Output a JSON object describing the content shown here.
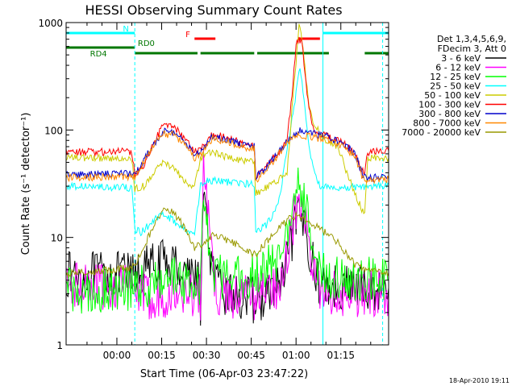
{
  "chart_data": {
    "type": "line",
    "title": "HESSI Observing Summary Count Rates",
    "xlabel": "Start Time (06-Apr-03 23:47:22)",
    "ylabel": "Count Rate (s⁻¹ detector⁻¹)",
    "yscale": "log",
    "ylim": [
      1,
      1000
    ],
    "xlim_minutes": [
      -17,
      91
    ],
    "x_ticks": [
      {
        "minutes": 0,
        "label": "00:00"
      },
      {
        "minutes": 15,
        "label": "00:15"
      },
      {
        "minutes": 30,
        "label": "00:30"
      },
      {
        "minutes": 45,
        "label": "00:45"
      },
      {
        "minutes": 60,
        "label": "01:00"
      },
      {
        "minutes": 75,
        "label": "01:15"
      }
    ],
    "y_ticks": [
      {
        "value": 1,
        "label": "1"
      },
      {
        "value": 10,
        "label": "10"
      },
      {
        "value": 100,
        "label": "100"
      },
      {
        "value": 1000,
        "label": "1000"
      }
    ],
    "legend": {
      "placement": "right",
      "header": [
        "Det 1,3,4,5,6,9,",
        "FDecim 3, Att 0"
      ]
    },
    "footer_date": "18-Apr-2010 19:11",
    "grid": false,
    "state_bars": [
      {
        "label": "N",
        "color": "#00ffff",
        "segments": [
          [
            -17,
            6
          ],
          [
            69,
            91
          ]
        ],
        "label_at": 2
      },
      {
        "label": "F",
        "color": "#ff0000",
        "segments": [
          [
            26,
            33
          ],
          [
            61,
            68
          ]
        ],
        "label_at": 23
      },
      {
        "label": "RD0",
        "color": "#007700",
        "segments": [
          [
            -17,
            6
          ]
        ],
        "label_at": 7
      },
      {
        "label": "RD4",
        "color": "#007700",
        "segments": [
          [
            6,
            27
          ],
          [
            28,
            46
          ],
          [
            47,
            71
          ],
          [
            83,
            91
          ]
        ],
        "label_at": -9
      }
    ],
    "vlines": [
      {
        "minutes": 6,
        "color": "#00ffff",
        "style": "dashed"
      },
      {
        "minutes": 69,
        "color": "#00ffff",
        "style": "solid"
      },
      {
        "minutes": 89,
        "color": "#00ffff",
        "style": "dashed"
      }
    ],
    "series": [
      {
        "name": "3 - 6 keV",
        "color": "#000000",
        "points": [
          [
            -17,
            4.5
          ],
          [
            5,
            4.5
          ],
          [
            6,
            4.5
          ],
          [
            6.5,
            4.5
          ],
          [
            10,
            5.2
          ],
          [
            14,
            5.8
          ],
          [
            18,
            5.8
          ],
          [
            22,
            5.2
          ],
          [
            26,
            4.8
          ],
          [
            27.5,
            3.5
          ],
          [
            28,
            2.5
          ],
          [
            29,
            21
          ],
          [
            30,
            14
          ],
          [
            31,
            8
          ],
          [
            32,
            5
          ],
          [
            33,
            4
          ],
          [
            34,
            3.2
          ],
          [
            40,
            2.8
          ],
          [
            46,
            2.6
          ],
          [
            50,
            2.8
          ],
          [
            56,
            4
          ],
          [
            59,
            11
          ],
          [
            61,
            15
          ],
          [
            63,
            13
          ],
          [
            65,
            7
          ],
          [
            67,
            4
          ],
          [
            69,
            3.5
          ],
          [
            75,
            3.5
          ],
          [
            88,
            3.3
          ],
          [
            91,
            3.4
          ]
        ]
      },
      {
        "name": "6 - 12 keV",
        "color": "#ff00ff",
        "points": [
          [
            -17,
            3.5
          ],
          [
            5,
            3.5
          ],
          [
            6,
            3.2
          ],
          [
            8,
            2.8
          ],
          [
            14,
            2.9
          ],
          [
            20,
            3.0
          ],
          [
            26,
            3.0
          ],
          [
            28,
            2.8
          ],
          [
            29,
            42
          ],
          [
            30,
            22
          ],
          [
            31,
            11
          ],
          [
            32,
            6
          ],
          [
            33,
            3.5
          ],
          [
            34,
            3.0
          ],
          [
            46,
            2.8
          ],
          [
            54,
            3.6
          ],
          [
            57,
            7
          ],
          [
            60,
            18
          ],
          [
            61,
            21
          ],
          [
            62,
            18
          ],
          [
            64,
            10
          ],
          [
            66,
            4
          ],
          [
            68,
            3.2
          ],
          [
            75,
            3.0
          ],
          [
            91,
            3.0
          ]
        ]
      },
      {
        "name": "12 - 25 keV",
        "color": "#00ff00",
        "points": [
          [
            -17,
            3.2
          ],
          [
            5,
            3.3
          ],
          [
            6,
            3.4
          ],
          [
            10,
            3.6
          ],
          [
            18,
            4.2
          ],
          [
            26,
            3.8
          ],
          [
            28,
            3.5
          ],
          [
            29,
            25
          ],
          [
            30,
            15
          ],
          [
            31,
            8
          ],
          [
            32,
            5
          ],
          [
            34,
            4.3
          ],
          [
            40,
            4.4
          ],
          [
            46,
            4.4
          ],
          [
            54,
            6
          ],
          [
            58,
            13
          ],
          [
            61,
            32
          ],
          [
            62,
            28
          ],
          [
            64,
            14
          ],
          [
            66,
            8
          ],
          [
            68,
            4.5
          ],
          [
            75,
            4.1
          ],
          [
            91,
            4.0
          ]
        ]
      },
      {
        "name": "25 - 50 keV",
        "color": "#00ffff",
        "points": [
          [
            -17,
            30
          ],
          [
            5,
            29
          ],
          [
            6,
            12
          ],
          [
            8,
            11
          ],
          [
            12,
            14
          ],
          [
            15,
            16.5
          ],
          [
            18,
            15
          ],
          [
            22,
            12
          ],
          [
            26,
            10.5
          ],
          [
            28,
            30
          ],
          [
            30,
            34
          ],
          [
            36,
            33
          ],
          [
            40,
            32
          ],
          [
            46,
            31
          ],
          [
            46.5,
            11
          ],
          [
            50,
            13
          ],
          [
            54,
            20
          ],
          [
            57,
            65
          ],
          [
            60,
            220
          ],
          [
            61,
            370
          ],
          [
            62,
            300
          ],
          [
            64,
            80
          ],
          [
            66,
            40
          ],
          [
            68,
            30
          ],
          [
            70,
            30
          ],
          [
            75,
            29
          ],
          [
            88,
            30
          ],
          [
            91,
            31
          ]
        ]
      },
      {
        "name": "50 - 100 keV",
        "color": "#cccc00",
        "points": [
          [
            -17,
            55
          ],
          [
            5,
            55
          ],
          [
            6,
            28
          ],
          [
            9,
            30
          ],
          [
            13,
            43
          ],
          [
            16,
            50
          ],
          [
            19,
            43
          ],
          [
            23,
            33
          ],
          [
            26,
            29
          ],
          [
            28,
            55
          ],
          [
            31,
            63
          ],
          [
            36,
            57
          ],
          [
            41,
            52
          ],
          [
            46,
            50
          ],
          [
            46.5,
            26
          ],
          [
            50,
            29
          ],
          [
            54,
            34
          ],
          [
            57,
            40
          ],
          [
            59,
            200
          ],
          [
            61,
            950
          ],
          [
            62,
            700
          ],
          [
            64,
            200
          ],
          [
            66,
            110
          ],
          [
            70,
            80
          ],
          [
            74,
            70
          ],
          [
            77,
            40
          ],
          [
            80,
            25
          ],
          [
            82,
            18
          ],
          [
            83,
            16
          ],
          [
            84,
            55
          ],
          [
            88,
            55
          ],
          [
            91,
            55
          ]
        ]
      },
      {
        "name": "100 - 300 keV",
        "color": "#ff0000",
        "points": [
          [
            -17,
            62
          ],
          [
            5,
            63
          ],
          [
            6,
            38
          ],
          [
            9,
            48
          ],
          [
            13,
            82
          ],
          [
            16,
            117
          ],
          [
            19,
            108
          ],
          [
            23,
            80
          ],
          [
            26,
            63
          ],
          [
            28,
            66
          ],
          [
            32,
            90
          ],
          [
            37,
            85
          ],
          [
            42,
            75
          ],
          [
            46,
            70
          ],
          [
            46.5,
            37
          ],
          [
            50,
            48
          ],
          [
            54,
            60
          ],
          [
            57,
            82
          ],
          [
            59,
            270
          ],
          [
            60,
            650
          ],
          [
            61,
            690
          ],
          [
            62,
            650
          ],
          [
            64,
            180
          ],
          [
            66,
            95
          ],
          [
            70,
            88
          ],
          [
            74,
            80
          ],
          [
            77,
            72
          ],
          [
            80,
            58
          ],
          [
            82,
            42
          ],
          [
            83,
            40
          ],
          [
            84,
            62
          ],
          [
            88,
            63
          ],
          [
            91,
            64
          ]
        ]
      },
      {
        "name": "300 - 800 keV",
        "color": "#0000cc",
        "points": [
          [
            -17,
            38
          ],
          [
            5,
            39
          ],
          [
            6,
            38
          ],
          [
            9,
            52
          ],
          [
            13,
            78
          ],
          [
            16,
            97
          ],
          [
            19,
            95
          ],
          [
            23,
            75
          ],
          [
            26,
            58
          ],
          [
            28,
            63
          ],
          [
            32,
            88
          ],
          [
            37,
            82
          ],
          [
            42,
            73
          ],
          [
            46,
            70
          ],
          [
            46.5,
            36
          ],
          [
            50,
            45
          ],
          [
            54,
            60
          ],
          [
            57,
            80
          ],
          [
            59,
            92
          ],
          [
            61,
            98
          ],
          [
            62,
            97
          ],
          [
            64,
            95
          ],
          [
            66,
            92
          ],
          [
            70,
            88
          ],
          [
            74,
            78
          ],
          [
            77,
            70
          ],
          [
            80,
            58
          ],
          [
            82,
            40
          ],
          [
            83,
            36
          ],
          [
            91,
            36
          ]
        ]
      },
      {
        "name": "800 - 7000 keV",
        "color": "#ff8800",
        "points": [
          [
            -17,
            36
          ],
          [
            5,
            37
          ],
          [
            6,
            36
          ],
          [
            9,
            50
          ],
          [
            13,
            75
          ],
          [
            16,
            92
          ],
          [
            19,
            90
          ],
          [
            23,
            72
          ],
          [
            26,
            55
          ],
          [
            28,
            60
          ],
          [
            32,
            84
          ],
          [
            37,
            78
          ],
          [
            42,
            70
          ],
          [
            46,
            67
          ],
          [
            46.5,
            34
          ],
          [
            50,
            43
          ],
          [
            54,
            58
          ],
          [
            57,
            76
          ],
          [
            59,
            85
          ],
          [
            61,
            90
          ],
          [
            62,
            89
          ],
          [
            64,
            87
          ],
          [
            66,
            85
          ],
          [
            70,
            82
          ],
          [
            74,
            74
          ],
          [
            77,
            66
          ],
          [
            80,
            54
          ],
          [
            82,
            38
          ],
          [
            83,
            34
          ],
          [
            91,
            35
          ]
        ]
      },
      {
        "name": "7000 - 20000 keV",
        "color": "#999900",
        "points": [
          [
            -17,
            4.6
          ],
          [
            5,
            5.2
          ],
          [
            6,
            5.5
          ],
          [
            9,
            8
          ],
          [
            13,
            14.5
          ],
          [
            16,
            18
          ],
          [
            19,
            17
          ],
          [
            23,
            12
          ],
          [
            26,
            8
          ],
          [
            28,
            8.5
          ],
          [
            32,
            10.5
          ],
          [
            37,
            9.5
          ],
          [
            42,
            8
          ],
          [
            46,
            7
          ],
          [
            46.5,
            7
          ],
          [
            50,
            9
          ],
          [
            54,
            12
          ],
          [
            57,
            14.5
          ],
          [
            60,
            16
          ],
          [
            62,
            15
          ],
          [
            64,
            14
          ],
          [
            66,
            13
          ],
          [
            70,
            11
          ],
          [
            74,
            9
          ],
          [
            77,
            7
          ],
          [
            80,
            5.5
          ],
          [
            83,
            5
          ],
          [
            88,
            4.8
          ],
          [
            91,
            4.7
          ]
        ]
      }
    ]
  }
}
